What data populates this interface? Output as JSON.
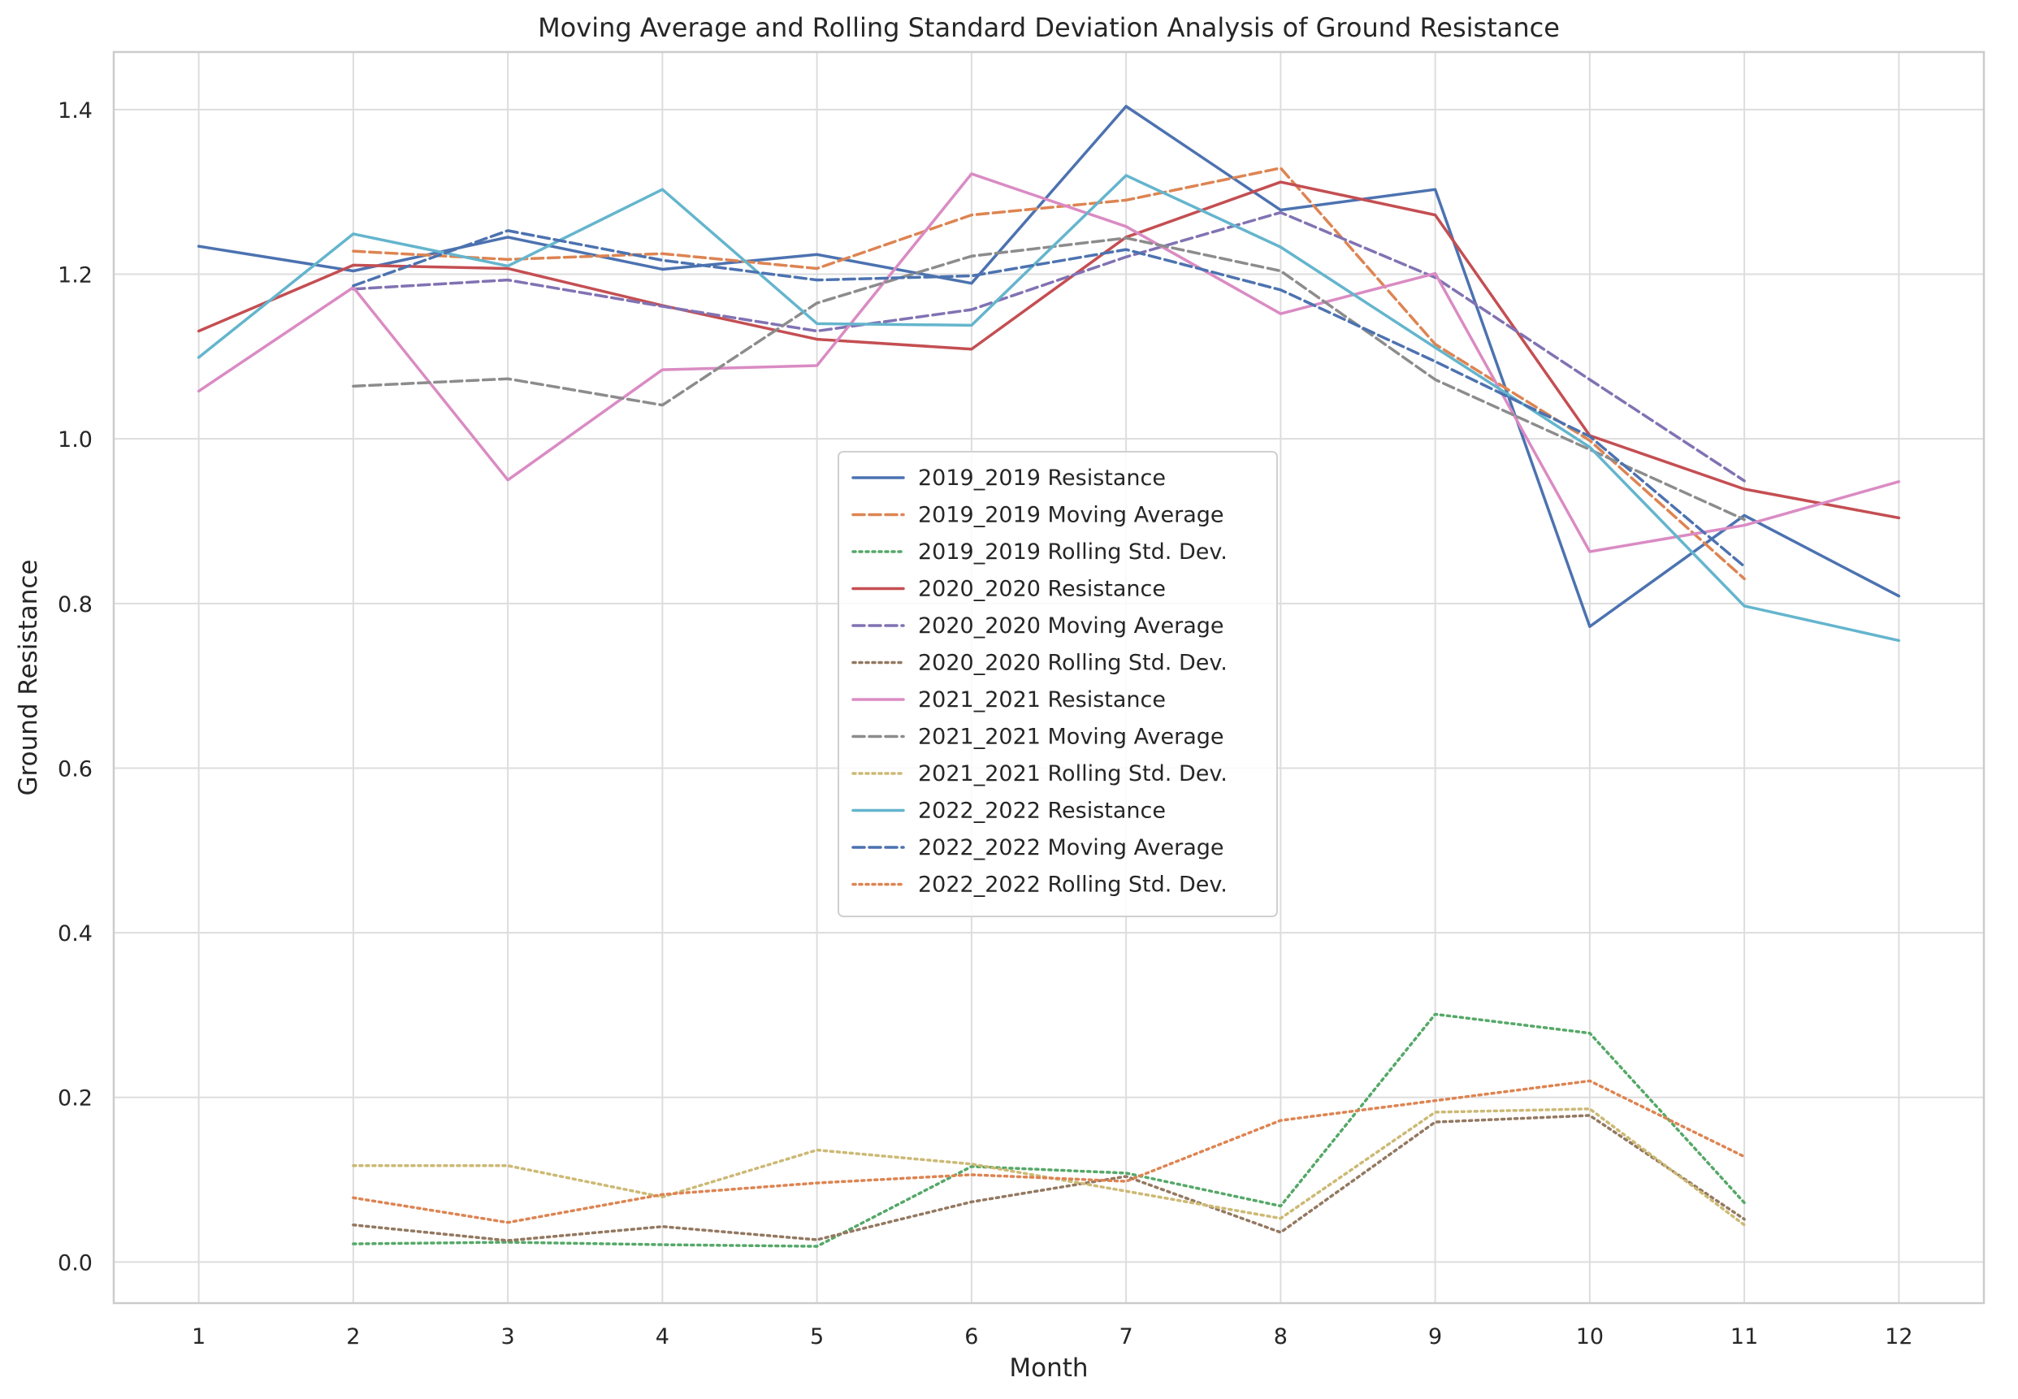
{
  "chart_data": {
    "type": "line",
    "title": "Moving Average and Rolling Standard Deviation Analysis of Ground Resistance",
    "xlabel": "Month",
    "ylabel": "Ground Resistance",
    "x": [
      1,
      2,
      3,
      4,
      5,
      6,
      7,
      8,
      9,
      10,
      11,
      12
    ],
    "x_ticks": [
      "1",
      "2",
      "3",
      "4",
      "5",
      "6",
      "7",
      "8",
      "9",
      "10",
      "11",
      "12"
    ],
    "xlim": [
      0.45,
      12.55
    ],
    "ylim": [
      -0.05,
      1.47
    ],
    "y_ticks": [
      0.0,
      0.2,
      0.4,
      0.6,
      0.8,
      1.0,
      1.2,
      1.4
    ],
    "y_tick_labels": [
      "0.0",
      "0.2",
      "0.4",
      "0.6",
      "0.8",
      "1.0",
      "1.2",
      "1.4"
    ],
    "grid": true,
    "legend_position": "center",
    "series": [
      {
        "name": "2019_2019 Resistance",
        "style": "solid",
        "color": "#4c72b0",
        "values": [
          1.234,
          1.204,
          1.245,
          1.206,
          1.224,
          1.189,
          1.404,
          1.278,
          1.303,
          0.772,
          0.907,
          0.809
        ]
      },
      {
        "name": "2019_2019 Moving Average",
        "style": "dashed",
        "color": "#dd8452",
        "values": [
          null,
          1.228,
          1.218,
          1.225,
          1.207,
          1.272,
          1.29,
          1.329,
          1.115,
          0.998,
          0.83,
          null
        ]
      },
      {
        "name": "2019_2019 Rolling Std. Dev.",
        "style": "dotted",
        "color": "#55a868",
        "values": [
          null,
          0.022,
          0.024,
          0.021,
          0.019,
          0.116,
          0.108,
          0.068,
          0.301,
          0.278,
          0.072,
          null
        ]
      },
      {
        "name": "2020_2020 Resistance",
        "style": "solid",
        "color": "#c44e52",
        "values": [
          1.131,
          1.211,
          1.207,
          1.162,
          1.121,
          1.109,
          1.245,
          1.312,
          1.272,
          1.004,
          0.939,
          0.904
        ]
      },
      {
        "name": "2020_2020 Moving Average",
        "style": "dashed",
        "color": "#8172b3",
        "values": [
          null,
          1.182,
          1.193,
          1.161,
          1.131,
          1.157,
          1.221,
          1.275,
          1.196,
          1.072,
          0.949,
          null
        ]
      },
      {
        "name": "2020_2020 Rolling Std. Dev.",
        "style": "dotted",
        "color": "#937860",
        "values": [
          null,
          0.045,
          0.026,
          0.043,
          0.027,
          0.073,
          0.104,
          0.036,
          0.17,
          0.178,
          0.052,
          null
        ]
      },
      {
        "name": "2021_2021 Resistance",
        "style": "solid",
        "color": "#da8bc3",
        "values": [
          1.058,
          1.184,
          0.95,
          1.084,
          1.089,
          1.322,
          1.258,
          1.152,
          1.201,
          0.863,
          0.895,
          0.948
        ]
      },
      {
        "name": "2021_2021 Moving Average",
        "style": "dashed",
        "color": "#8c8c8c",
        "values": [
          null,
          1.064,
          1.073,
          1.041,
          1.165,
          1.222,
          1.244,
          1.204,
          1.072,
          0.987,
          0.902,
          null
        ]
      },
      {
        "name": "2021_2021 Rolling Std. Dev.",
        "style": "dotted",
        "color": "#ccb974",
        "values": [
          null,
          0.117,
          0.117,
          0.079,
          0.136,
          0.119,
          0.086,
          0.053,
          0.182,
          0.186,
          0.045,
          null
        ]
      },
      {
        "name": "2022_2022 Resistance",
        "style": "solid",
        "color": "#64b5cd",
        "values": [
          1.099,
          1.249,
          1.21,
          1.303,
          1.14,
          1.138,
          1.32,
          1.233,
          1.111,
          0.99,
          0.797,
          0.755
        ]
      },
      {
        "name": "2022_2022 Moving Average",
        "style": "dashed",
        "color": "#4c72b0",
        "values": [
          null,
          1.186,
          1.253,
          1.217,
          1.193,
          1.198,
          1.23,
          1.181,
          1.094,
          1.003,
          0.845,
          null
        ]
      },
      {
        "name": "2022_2022 Rolling Std. Dev.",
        "style": "dotted",
        "color": "#dd8452",
        "values": [
          null,
          0.078,
          0.048,
          0.082,
          0.096,
          0.106,
          0.098,
          0.172,
          0.196,
          0.22,
          0.128,
          null
        ]
      }
    ]
  }
}
